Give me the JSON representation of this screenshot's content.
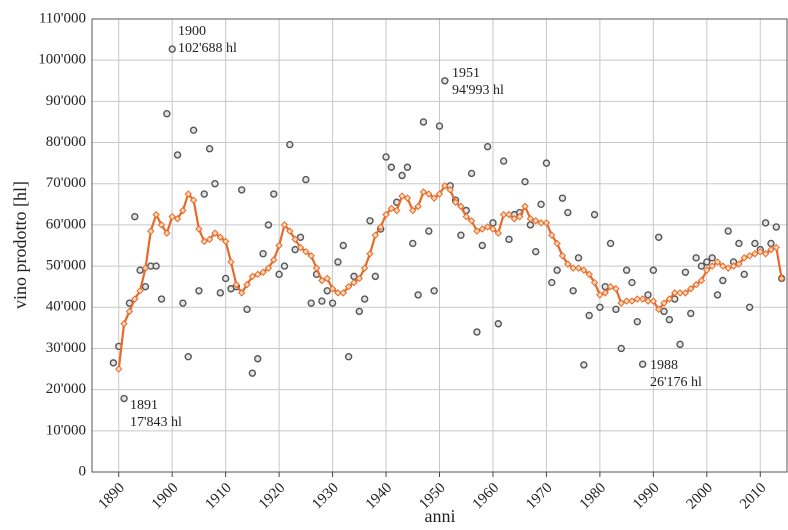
{
  "chart_data": {
    "type": "scatter",
    "xlabel": "anni",
    "ylabel": "vino prodotto [hl]",
    "xlim": [
      1885,
      2015
    ],
    "xticks": [
      1890,
      1900,
      1910,
      1920,
      1930,
      1940,
      1950,
      1960,
      1970,
      1980,
      1990,
      2000,
      2010
    ],
    "ylim": [
      0,
      110000
    ],
    "yticks": [
      0,
      {
        "value": 10000,
        "label": "10'000"
      },
      {
        "value": 20000,
        "label": "20'000"
      },
      {
        "value": 30000,
        "label": "30'000"
      },
      {
        "value": 40000,
        "label": "40'000"
      },
      {
        "value": 50000,
        "label": "50'000"
      },
      {
        "value": 60000,
        "label": "60'000"
      },
      {
        "value": 70000,
        "label": "70'000"
      },
      {
        "value": 80000,
        "label": "80'000"
      },
      {
        "value": 90000,
        "label": "90'000"
      },
      {
        "value": 100000,
        "label": "100'000"
      },
      {
        "value": 110000,
        "label": "110'000"
      }
    ],
    "grid": true,
    "series": [
      {
        "type": "scatter",
        "color": "#555555",
        "x": [
          1889,
          1890,
          1891,
          1892,
          1893,
          1894,
          1895,
          1896,
          1897,
          1898,
          1899,
          1900,
          1901,
          1902,
          1903,
          1904,
          1905,
          1906,
          1907,
          1908,
          1909,
          1910,
          1911,
          1912,
          1913,
          1914,
          1915,
          1916,
          1917,
          1918,
          1919,
          1920,
          1921,
          1922,
          1923,
          1924,
          1925,
          1926,
          1927,
          1928,
          1929,
          1930,
          1931,
          1932,
          1933,
          1934,
          1935,
          1936,
          1937,
          1938,
          1939,
          1940,
          1941,
          1942,
          1943,
          1944,
          1945,
          1946,
          1947,
          1948,
          1949,
          1950,
          1951,
          1952,
          1953,
          1954,
          1955,
          1956,
          1957,
          1958,
          1959,
          1960,
          1961,
          1962,
          1963,
          1964,
          1965,
          1966,
          1967,
          1968,
          1969,
          1970,
          1971,
          1972,
          1973,
          1974,
          1975,
          1976,
          1977,
          1978,
          1979,
          1980,
          1981,
          1982,
          1983,
          1984,
          1985,
          1986,
          1987,
          1988,
          1989,
          1990,
          1991,
          1992,
          1993,
          1994,
          1995,
          1996,
          1997,
          1998,
          1999,
          2000,
          2001,
          2002,
          2003,
          2004,
          2005,
          2006,
          2007,
          2008,
          2009,
          2010,
          2011,
          2012,
          2013,
          2014
        ],
        "values": [
          26500,
          30500,
          17843,
          41000,
          62000,
          49000,
          45000,
          50000,
          50000,
          42000,
          87000,
          102688,
          77000,
          41000,
          28000,
          83000,
          44000,
          67500,
          78500,
          70000,
          43500,
          47000,
          44500,
          45000,
          68500,
          39500,
          24000,
          27500,
          53000,
          60000,
          67500,
          48000,
          50000,
          79500,
          54000,
          57000,
          71000,
          41000,
          48000,
          41500,
          44000,
          41000,
          51000,
          55000,
          28000,
          47500,
          39000,
          42000,
          61000,
          47500,
          59000,
          76500,
          74000,
          65500,
          72000,
          74000,
          55500,
          43000,
          85000,
          58500,
          44000,
          84000,
          94993,
          69500,
          66000,
          57500,
          63500,
          72500,
          34000,
          55000,
          79000,
          60500,
          36000,
          75500,
          56500,
          62500,
          63000,
          70500,
          60000,
          53500,
          65000,
          75000,
          46000,
          49000,
          66500,
          63000,
          44000,
          52000,
          26000,
          38000,
          62500,
          40000,
          45000,
          55500,
          39500,
          30000,
          49000,
          46000,
          36500,
          26176,
          43000,
          49000,
          57000,
          39000,
          37000,
          42000,
          31000,
          48500,
          38500,
          52000,
          50000,
          51000,
          52000,
          43000,
          46500,
          58500,
          51000,
          55500,
          48000,
          40000,
          55500,
          54000,
          60500,
          55500,
          59500,
          47000
        ]
      },
      {
        "type": "line",
        "color": "#e8692a",
        "x": [
          1890,
          1891,
          1892,
          1893,
          1894,
          1895,
          1896,
          1897,
          1898,
          1899,
          1900,
          1901,
          1902,
          1903,
          1904,
          1905,
          1906,
          1907,
          1908,
          1909,
          1910,
          1911,
          1912,
          1913,
          1914,
          1915,
          1916,
          1917,
          1918,
          1919,
          1920,
          1921,
          1922,
          1923,
          1924,
          1925,
          1926,
          1927,
          1928,
          1929,
          1930,
          1931,
          1932,
          1933,
          1934,
          1935,
          1936,
          1937,
          1938,
          1939,
          1940,
          1941,
          1942,
          1943,
          1944,
          1945,
          1946,
          1947,
          1948,
          1949,
          1950,
          1951,
          1952,
          1953,
          1954,
          1955,
          1956,
          1957,
          1958,
          1959,
          1960,
          1961,
          1962,
          1963,
          1964,
          1965,
          1966,
          1967,
          1968,
          1969,
          1970,
          1971,
          1972,
          1973,
          1974,
          1975,
          1976,
          1977,
          1978,
          1979,
          1980,
          1981,
          1982,
          1983,
          1984,
          1985,
          1986,
          1987,
          1988,
          1989,
          1990,
          1991,
          1992,
          1993,
          1994,
          1995,
          1996,
          1997,
          1998,
          1999,
          2000,
          2001,
          2002,
          2003,
          2004,
          2005,
          2006,
          2007,
          2008,
          2009,
          2010,
          2011,
          2012,
          2013,
          2014
        ],
        "values": [
          25000,
          36000,
          39000,
          42000,
          44000,
          49500,
          58500,
          62500,
          60000,
          58000,
          62000,
          61500,
          63500,
          67500,
          66000,
          59000,
          56000,
          56500,
          58000,
          57000,
          56000,
          51000,
          45500,
          43500,
          45500,
          47500,
          48000,
          48500,
          49500,
          51500,
          55000,
          60000,
          58500,
          56500,
          54500,
          53500,
          52500,
          49500,
          46500,
          47000,
          44500,
          43500,
          43500,
          45000,
          46000,
          47000,
          49500,
          53000,
          57500,
          59500,
          62500,
          64000,
          63500,
          67000,
          66500,
          63500,
          64500,
          68000,
          67500,
          66500,
          67500,
          69500,
          68500,
          65500,
          64500,
          62000,
          61000,
          58500,
          59000,
          59500,
          59000,
          58000,
          62500,
          62500,
          61500,
          62000,
          64500,
          61500,
          61000,
          60500,
          60500,
          57500,
          55500,
          52500,
          50500,
          49500,
          49500,
          49000,
          48000,
          46000,
          43000,
          43500,
          45000,
          44500,
          41000,
          41500,
          41500,
          42000,
          42000,
          41500,
          41500,
          39500,
          41000,
          42000,
          43500,
          43500,
          43500,
          44500,
          45500,
          46500,
          49000,
          50000,
          51000,
          50000,
          49500,
          50000,
          50500,
          52000,
          52500,
          53000,
          53500,
          53000,
          54000,
          54500,
          47000
        ]
      }
    ],
    "annotations": [
      {
        "lines": [
          "1900",
          "102'688 hl"
        ]
      },
      {
        "lines": [
          "1951",
          "94'993 hl"
        ]
      },
      {
        "lines": [
          "1891",
          "17'843 hl"
        ]
      },
      {
        "lines": [
          "1988",
          "26'176 hl"
        ]
      }
    ]
  }
}
